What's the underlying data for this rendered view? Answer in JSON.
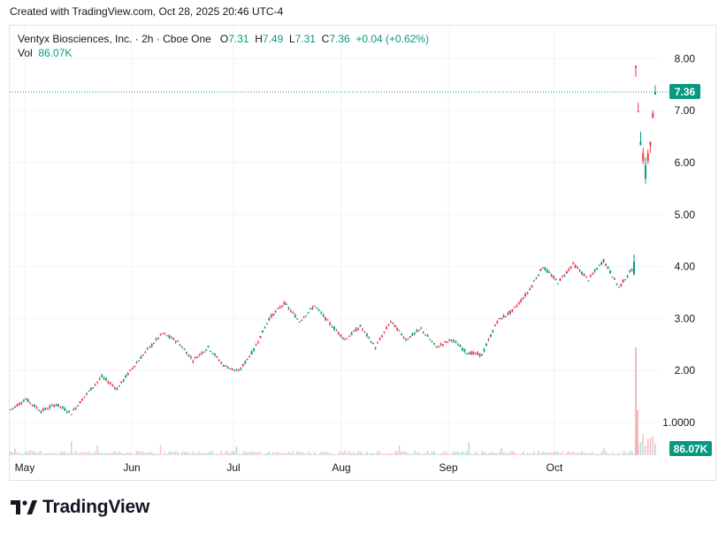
{
  "caption": "Created with TradingView.com, Oct 28, 2025 20:46 UTC-4",
  "legend": {
    "name": "Ventyx Biosciences, Inc.",
    "interval": "2h",
    "exchange": "Cboe One",
    "o_label": "O",
    "o_value": "7.31",
    "h_label": "H",
    "h_value": "7.49",
    "l_label": "L",
    "l_value": "7.31",
    "c_label": "C",
    "c_value": "7.36",
    "change": "+0.04 (+0.62%)",
    "vol_label": "Vol",
    "vol_value": "86.07K"
  },
  "brand": "TradingView",
  "colors": {
    "up": "#089981",
    "down": "#f23645",
    "grid": "#f0f3fa",
    "badge": "#089981"
  },
  "chart_data": {
    "type": "candlestick",
    "y_ticks": [
      "8.00",
      "7.00",
      "6.00",
      "5.00",
      "4.00",
      "3.00",
      "2.00",
      "1.0000"
    ],
    "y_tick_values": [
      8,
      7,
      6,
      5,
      4,
      3,
      2,
      1
    ],
    "x_ticks": [
      "May",
      "Jun",
      "Jul",
      "Aug",
      "Sep",
      "Oct"
    ],
    "ylim": [
      0.3,
      8.3
    ],
    "last_price": 7.36,
    "last_price_label": "7.36",
    "last_volume_label": "86.07K",
    "close_path": [
      {
        "month": "May",
        "price": 1.25
      },
      {
        "month": "May",
        "price": 1.45
      },
      {
        "month": "May",
        "price": 1.22
      },
      {
        "month": "May",
        "price": 1.35
      },
      {
        "month": "May",
        "price": 1.18
      },
      {
        "month": "May",
        "price": 1.55
      },
      {
        "month": "May",
        "price": 1.88
      },
      {
        "month": "Jun",
        "price": 1.65
      },
      {
        "month": "Jun",
        "price": 2.05
      },
      {
        "month": "Jun",
        "price": 2.4
      },
      {
        "month": "Jun",
        "price": 2.72
      },
      {
        "month": "Jun",
        "price": 2.55
      },
      {
        "month": "Jun",
        "price": 2.2
      },
      {
        "month": "Jun",
        "price": 2.45
      },
      {
        "month": "Jun",
        "price": 2.1
      },
      {
        "month": "Jul",
        "price": 1.98
      },
      {
        "month": "Jul",
        "price": 2.4
      },
      {
        "month": "Jul",
        "price": 3.0
      },
      {
        "month": "Jul",
        "price": 3.3
      },
      {
        "month": "Jul",
        "price": 2.95
      },
      {
        "month": "Jul",
        "price": 3.25
      },
      {
        "month": "Jul",
        "price": 2.9
      },
      {
        "month": "Aug",
        "price": 2.6
      },
      {
        "month": "Aug",
        "price": 2.85
      },
      {
        "month": "Aug",
        "price": 2.45
      },
      {
        "month": "Aug",
        "price": 2.95
      },
      {
        "month": "Aug",
        "price": 2.6
      },
      {
        "month": "Aug",
        "price": 2.8
      },
      {
        "month": "Aug",
        "price": 2.45
      },
      {
        "month": "Sep",
        "price": 2.6
      },
      {
        "month": "Sep",
        "price": 2.35
      },
      {
        "month": "Sep",
        "price": 2.3
      },
      {
        "month": "Sep",
        "price": 2.95
      },
      {
        "month": "Sep",
        "price": 3.15
      },
      {
        "month": "Oct",
        "price": 3.5
      },
      {
        "month": "Oct",
        "price": 4.0
      },
      {
        "month": "Oct",
        "price": 3.7
      },
      {
        "month": "Oct",
        "price": 4.05
      },
      {
        "month": "Oct",
        "price": 3.75
      },
      {
        "month": "Oct",
        "price": 4.12
      },
      {
        "month": "Oct",
        "price": 3.6
      },
      {
        "month": "Oct",
        "price": 4.0
      },
      {
        "month": "Oct",
        "price": 7.7
      },
      {
        "month": "Oct",
        "price": 6.5
      },
      {
        "month": "Oct",
        "price": 5.8
      },
      {
        "month": "Oct",
        "price": 6.4
      },
      {
        "month": "Oct",
        "price": 7.36
      }
    ],
    "volume_spikes": [
      {
        "month": "Oct",
        "label": "spike",
        "volume_ratio": 1.0
      },
      {
        "month": "Oct",
        "label": "spike",
        "volume_ratio": 0.42
      }
    ]
  }
}
